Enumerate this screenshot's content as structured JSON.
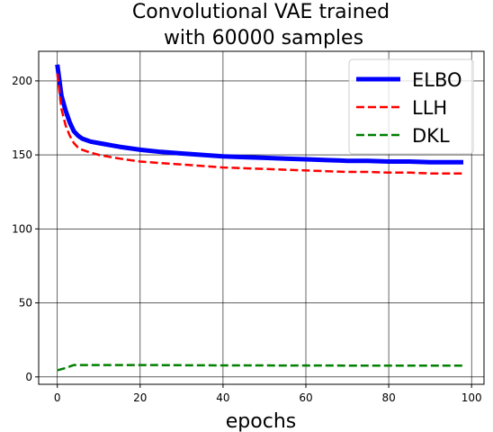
{
  "chart_data": {
    "type": "line",
    "title_lines": [
      "Convolutional VAE trained",
      "with 60000 samples"
    ],
    "xlabel": "epochs",
    "ylabel": "",
    "xlim": [
      -4.5,
      103
    ],
    "ylim": [
      -5,
      220
    ],
    "xticks": [
      0,
      20,
      40,
      60,
      80,
      100
    ],
    "yticks": [
      0,
      50,
      100,
      150,
      200
    ],
    "grid": true,
    "legend_position": "top-right",
    "series": [
      {
        "name": "ELBO",
        "color": "#0000ff",
        "style": "solid",
        "x": [
          0,
          1,
          2,
          3,
          4,
          5,
          6,
          8,
          10,
          12,
          15,
          20,
          25,
          30,
          35,
          40,
          45,
          50,
          55,
          60,
          65,
          70,
          75,
          80,
          85,
          90,
          95,
          98
        ],
        "y": [
          211,
          190,
          180,
          172,
          166,
          163,
          161,
          159,
          158,
          157,
          155.5,
          153.5,
          152,
          151,
          150,
          149,
          148.5,
          148,
          147.5,
          147,
          146.5,
          146,
          146,
          145.5,
          145.5,
          145,
          145,
          145
        ]
      },
      {
        "name": "LLH",
        "color": "#ff0000",
        "style": "dashed",
        "x": [
          0,
          1,
          2,
          3,
          4,
          5,
          6,
          8,
          10,
          12,
          15,
          20,
          25,
          30,
          35,
          40,
          45,
          50,
          55,
          60,
          65,
          70,
          75,
          80,
          85,
          90,
          95,
          98
        ],
        "y": [
          205,
          181,
          170,
          163,
          158,
          155,
          153.5,
          151.5,
          150,
          149,
          147.5,
          145.5,
          144.5,
          143.5,
          142.5,
          141.5,
          141,
          140.5,
          140,
          139.5,
          139,
          138.5,
          138.5,
          138,
          138,
          137.5,
          137.5,
          137.5
        ]
      },
      {
        "name": "DKL",
        "color": "#008000",
        "style": "dashed",
        "x": [
          0,
          2,
          4,
          10,
          20,
          40,
          60,
          80,
          98
        ],
        "y": [
          4.5,
          6,
          8,
          8,
          8,
          7.8,
          7.7,
          7.6,
          7.6
        ]
      }
    ]
  }
}
